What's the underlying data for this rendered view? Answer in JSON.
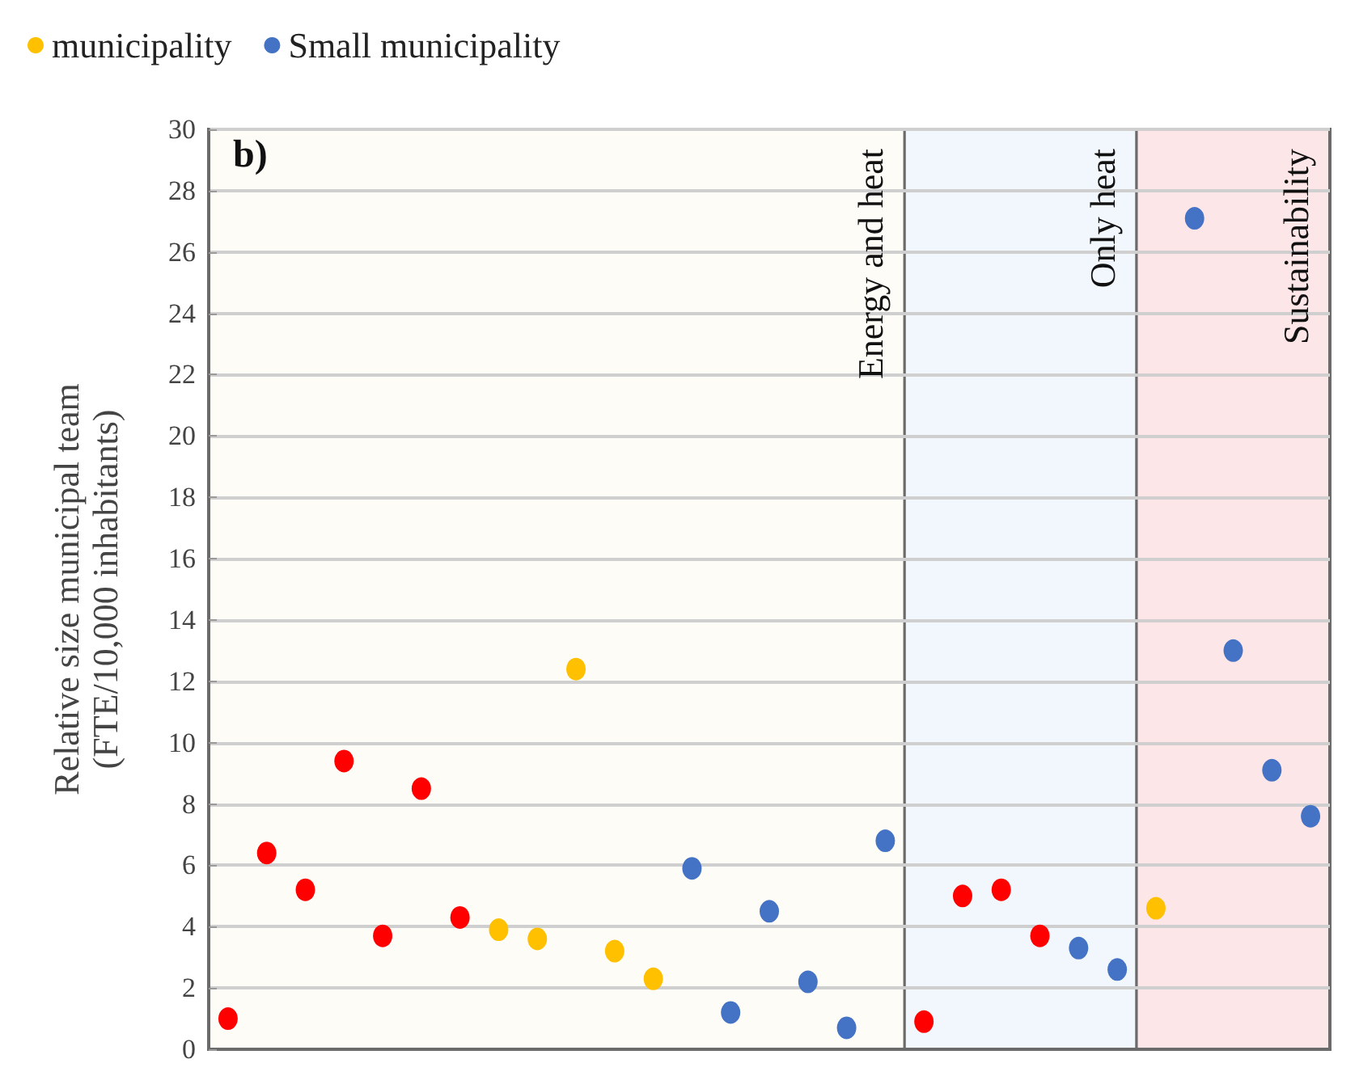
{
  "chart_data": {
    "type": "scatter",
    "ylabel": "Relative size municipal team\n(FTE/10,000 inhabitants)",
    "annotations": [
      "b)",
      "Energy and heat",
      "Only heat",
      "Sustainability"
    ],
    "categories": [
      null,
      null,
      null,
      null,
      null,
      null,
      null,
      null,
      null,
      null,
      null,
      null,
      null,
      null,
      null,
      null,
      null,
      null,
      null,
      null,
      null,
      null,
      null,
      null,
      null,
      null,
      null,
      null,
      null
    ],
    "ylim": [
      0,
      30
    ],
    "yticks": [
      0,
      2,
      4,
      6,
      8,
      10,
      12,
      14,
      16,
      18,
      20,
      22,
      24,
      26,
      28,
      30
    ],
    "tick_labels": "y",
    "grid": "y",
    "legend": "top left",
    "marker": "circle",
    "series": [
      {
        "color": "#ff0000",
        "values": [
          1.0,
          6.4,
          5.2,
          9.4,
          3.7,
          8.5,
          4.3,
          null,
          null,
          null,
          null,
          null,
          null,
          null,
          null,
          null,
          null,
          null,
          0.9,
          5.0,
          5.2,
          3.7,
          null,
          null,
          null,
          null,
          null,
          null,
          null
        ]
      },
      {
        "name": "municipality",
        "color": "#ffc000",
        "values": [
          null,
          null,
          null,
          null,
          null,
          null,
          null,
          3.9,
          3.6,
          12.4,
          3.2,
          2.3,
          null,
          null,
          null,
          null,
          null,
          null,
          null,
          null,
          null,
          null,
          null,
          null,
          4.6,
          null,
          null,
          null,
          null
        ]
      },
      {
        "name": "Small municipality",
        "color": "#4472c4",
        "values": [
          null,
          null,
          null,
          null,
          null,
          null,
          null,
          null,
          null,
          null,
          null,
          null,
          5.9,
          1.2,
          4.5,
          2.2,
          0.7,
          6.8,
          null,
          null,
          null,
          null,
          3.3,
          2.6,
          null,
          27.1,
          13.0,
          9.1,
          7.6
        ]
      }
    ]
  }
}
